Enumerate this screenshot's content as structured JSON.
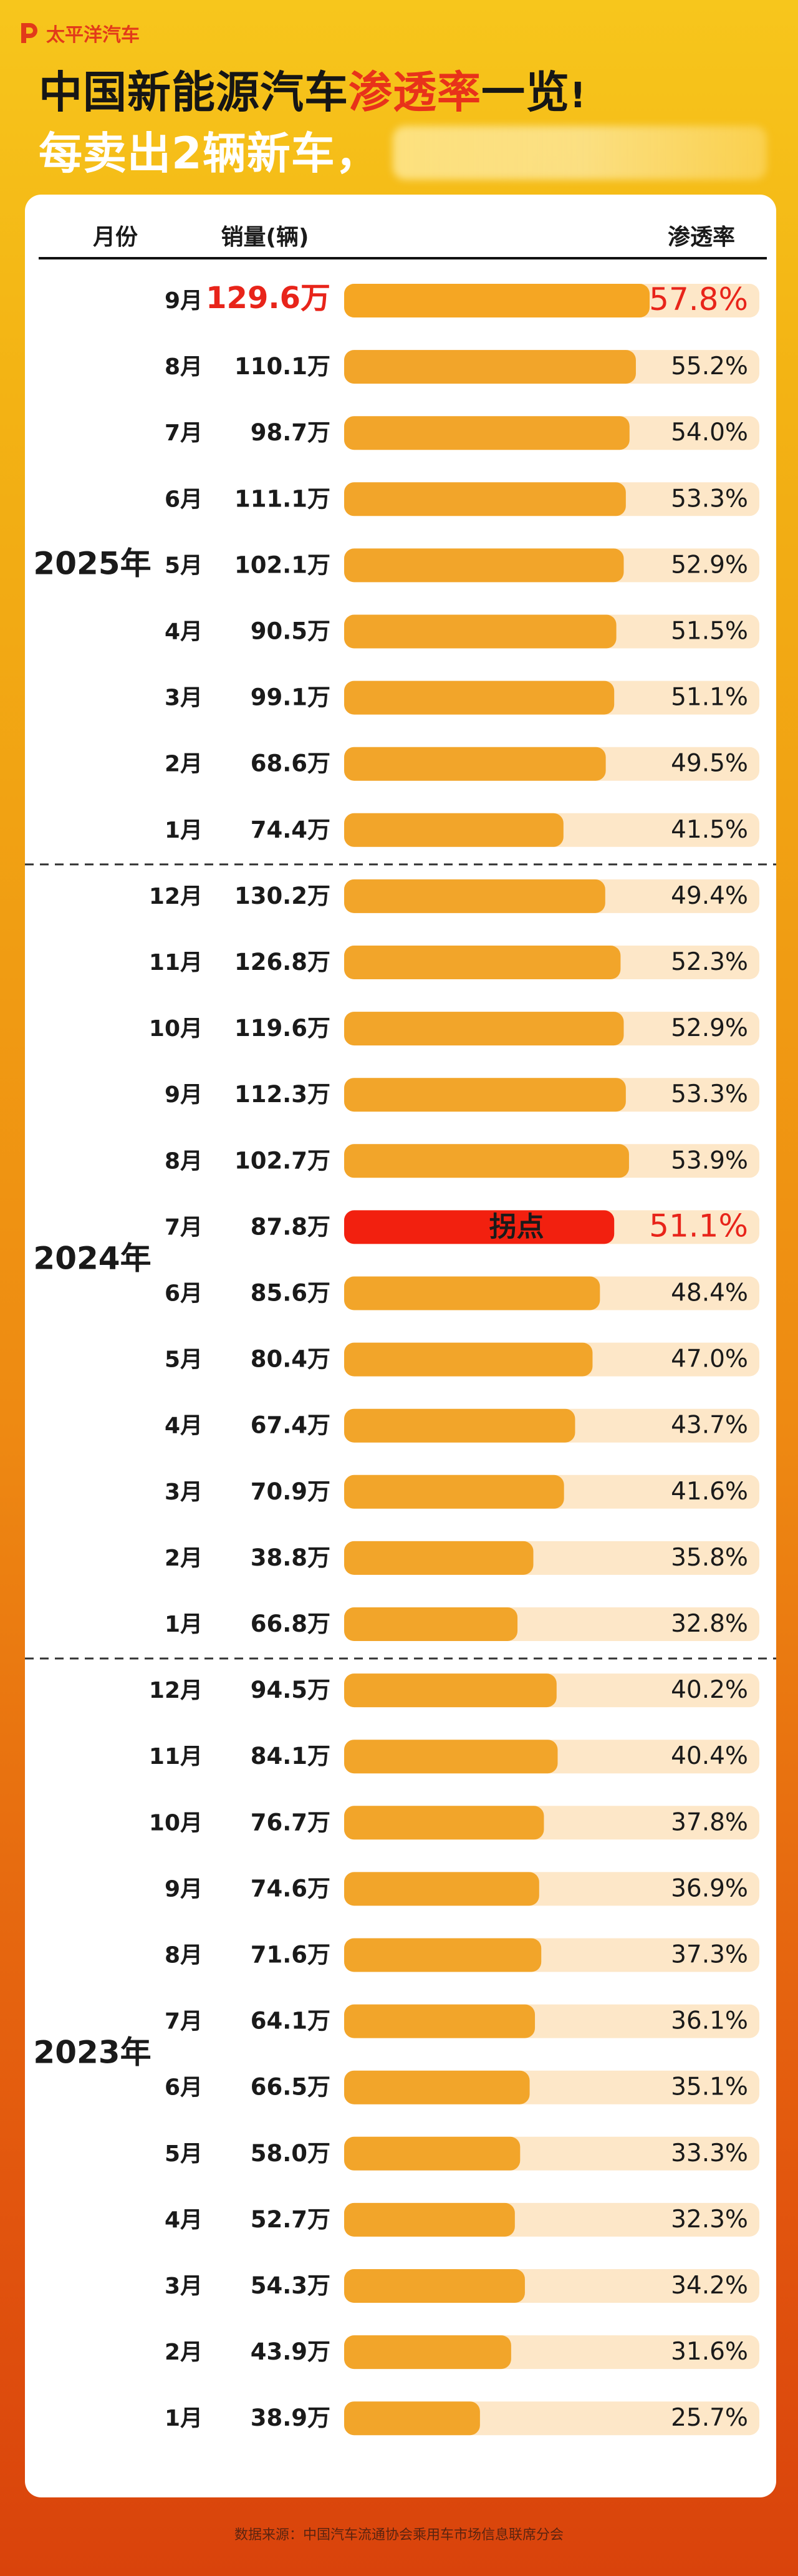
{
  "brand": {
    "logo_text": "太平洋汽车",
    "accent": "#e8321a"
  },
  "title": {
    "line1_part1": "中国新能源汽车",
    "line1_highlight": "渗透率",
    "line1_part2": "一览",
    "line1_bang": "!",
    "line2": "每卖出2辆新车，"
  },
  "chart_data": {
    "type": "bar",
    "columns": {
      "month": "月份",
      "sales": "销量(辆)",
      "rate": "渗透率"
    },
    "units": {
      "month_suffix": "月",
      "sales_suffix": "万",
      "rate_suffix": "%"
    },
    "xlim": [
      0,
      57.8
    ],
    "groups": [
      {
        "year_label": "2025年",
        "rows": [
          {
            "month": "9月",
            "sales": 129.6,
            "rate": 57.8,
            "highlight": true
          },
          {
            "month": "8月",
            "sales": 110.1,
            "rate": 55.2
          },
          {
            "month": "7月",
            "sales": 98.7,
            "rate": 54.0
          },
          {
            "month": "6月",
            "sales": 111.1,
            "rate": 53.3
          },
          {
            "month": "5月",
            "sales": 102.1,
            "rate": 52.9
          },
          {
            "month": "4月",
            "sales": 90.5,
            "rate": 51.5
          },
          {
            "month": "3月",
            "sales": 99.1,
            "rate": 51.1
          },
          {
            "month": "2月",
            "sales": 68.6,
            "rate": 49.5
          },
          {
            "month": "1月",
            "sales": 74.4,
            "rate": 41.5
          }
        ]
      },
      {
        "year_label": "2024年",
        "rows": [
          {
            "month": "12月",
            "sales": 130.2,
            "rate": 49.4
          },
          {
            "month": "11月",
            "sales": 126.8,
            "rate": 52.3
          },
          {
            "month": "10月",
            "sales": 119.6,
            "rate": 52.9
          },
          {
            "month": "9月",
            "sales": 112.3,
            "rate": 53.3
          },
          {
            "month": "8月",
            "sales": 102.7,
            "rate": 53.9
          },
          {
            "month": "7月",
            "sales": 87.8,
            "rate": 51.1,
            "turning_point": true,
            "note": "拐点"
          },
          {
            "month": "6月",
            "sales": 85.6,
            "rate": 48.4
          },
          {
            "month": "5月",
            "sales": 80.4,
            "rate": 47.0
          },
          {
            "month": "4月",
            "sales": 67.4,
            "rate": 43.7
          },
          {
            "month": "3月",
            "sales": 70.9,
            "rate": 41.6
          },
          {
            "month": "2月",
            "sales": 38.8,
            "rate": 35.8
          },
          {
            "month": "1月",
            "sales": 66.8,
            "rate": 32.8
          }
        ]
      },
      {
        "year_label": "2023年",
        "rows": [
          {
            "month": "12月",
            "sales": 94.5,
            "rate": 40.2
          },
          {
            "month": "11月",
            "sales": 84.1,
            "rate": 40.4
          },
          {
            "month": "10月",
            "sales": 76.7,
            "rate": 37.8
          },
          {
            "month": "9月",
            "sales": 74.6,
            "rate": 36.9
          },
          {
            "month": "8月",
            "sales": 71.6,
            "rate": 37.3
          },
          {
            "month": "7月",
            "sales": 64.1,
            "rate": 36.1
          },
          {
            "month": "6月",
            "sales": 66.5,
            "rate": 35.1
          },
          {
            "month": "5月",
            "sales": 58.0,
            "rate": 33.3
          },
          {
            "month": "4月",
            "sales": 52.7,
            "rate": 32.3
          },
          {
            "month": "3月",
            "sales": 54.3,
            "rate": 34.2
          },
          {
            "month": "2月",
            "sales": 43.9,
            "rate": 31.6
          },
          {
            "month": "1月",
            "sales": 38.9,
            "rate": 25.7
          }
        ]
      }
    ],
    "colors": {
      "bar": "#f2a52a",
      "track": "#fde7c8",
      "highlight_bar": "#f5a623",
      "turning_bar": "#f2200f",
      "highlight_text": "#e8241a",
      "text": "#1a1a1a"
    }
  },
  "footer": {
    "source": "数据来源：中国汽车流通协会乘用车市场信息联席分会"
  }
}
